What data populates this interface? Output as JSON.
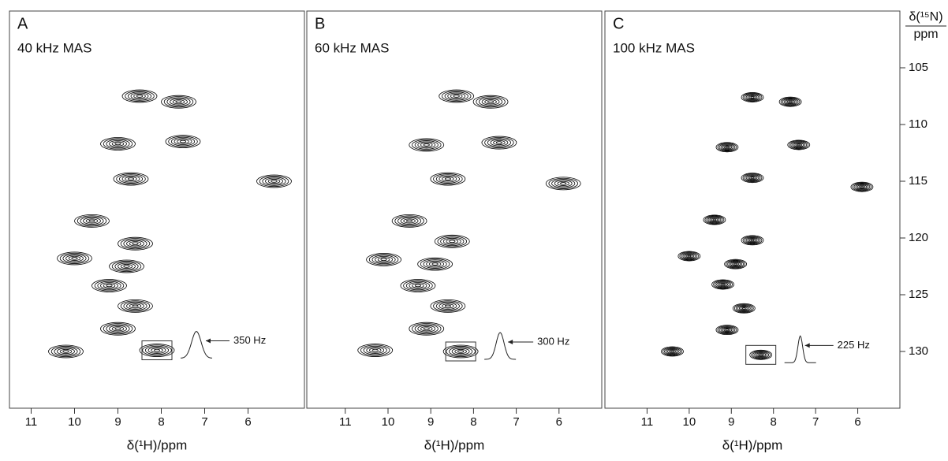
{
  "chart_data": [
    {
      "type": "contour",
      "title": "A",
      "subtitle": "40 kHz MAS",
      "x_label": "δ(¹H)/ppm",
      "annotation": "350 Hz",
      "xlim": [
        11.5,
        4.7
      ],
      "xticks": [
        11,
        10,
        9,
        8,
        7,
        6
      ],
      "ylim": [
        100,
        135
      ],
      "color": "#000000",
      "peaks": {
        "x": [
          8.5,
          7.6,
          9.0,
          7.5,
          8.7,
          9.6,
          8.6,
          8.8,
          9.2,
          8.6,
          9.0,
          10.0,
          5.4,
          10.2,
          8.1
        ],
        "y": [
          107.5,
          108,
          111.7,
          111.5,
          114.8,
          118.5,
          120.5,
          122.5,
          124.2,
          126,
          128,
          121.8,
          115,
          130,
          129.9
        ]
      }
    },
    {
      "type": "contour",
      "title": "B",
      "subtitle": "60 kHz MAS",
      "x_label": "δ(¹H)/ppm",
      "annotation": "300 Hz",
      "xlim": [
        11.9,
        5.0
      ],
      "xticks": [
        11,
        10,
        9,
        8,
        7,
        6
      ],
      "ylim": [
        100,
        135
      ],
      "color": "#000000",
      "peaks": {
        "x": [
          8.4,
          7.6,
          9.1,
          7.4,
          8.6,
          9.5,
          8.5,
          8.9,
          9.3,
          8.6,
          9.1,
          10.1,
          5.9,
          10.3,
          8.3
        ],
        "y": [
          107.5,
          108,
          111.8,
          111.6,
          114.8,
          118.5,
          120.3,
          122.3,
          124.2,
          126,
          128,
          121.9,
          115.2,
          129.9,
          130
        ]
      }
    },
    {
      "type": "contour",
      "title": "C",
      "subtitle": "100 kHz MAS",
      "x_label": "δ(¹H)/ppm",
      "annotation": "225 Hz",
      "xlim": [
        12.0,
        5.0
      ],
      "xticks": [
        11,
        10,
        9,
        8,
        7,
        6
      ],
      "ylim": [
        100,
        135
      ],
      "color": "#000000",
      "yticks": [
        105,
        110,
        115,
        120,
        125,
        130
      ],
      "y_label": "δ(¹⁵N)",
      "y_unit": "ppm",
      "peaks": {
        "x": [
          8.5,
          7.6,
          9.1,
          7.4,
          8.5,
          9.4,
          8.5,
          8.9,
          9.2,
          8.7,
          9.1,
          10.0,
          5.9,
          10.4,
          8.3
        ],
        "y": [
          107.6,
          108,
          112,
          111.8,
          114.7,
          118.4,
          120.2,
          122.3,
          124.1,
          126.2,
          128.1,
          121.6,
          115.5,
          130,
          130.3
        ]
      }
    }
  ]
}
